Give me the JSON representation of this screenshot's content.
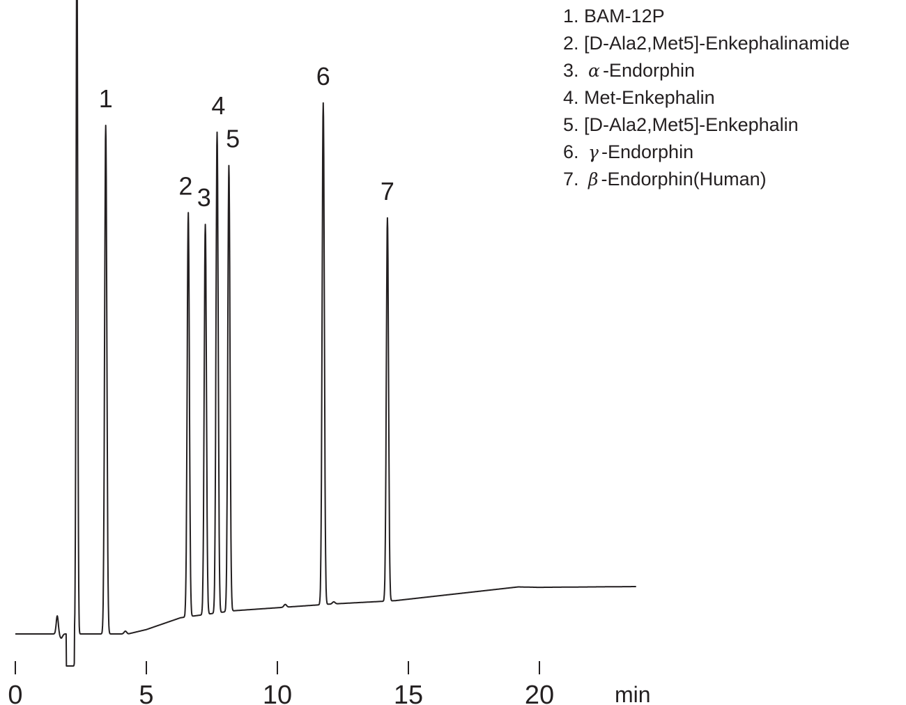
{
  "chart_data": {
    "type": "line",
    "title": "",
    "xlabel": "min",
    "ylabel": "",
    "xlim": [
      0,
      24
    ],
    "x_ticks": [
      0,
      5,
      10,
      15,
      20
    ],
    "x_tick_labels": [
      "0",
      "5",
      "10",
      "15",
      "20"
    ],
    "y_axis_shown": false,
    "grid": false,
    "legend_position": "top-right",
    "line_color": "#231f20",
    "peaks": [
      {
        "label": "1",
        "rt": 3.45,
        "height": 0.73
      },
      {
        "label": "2",
        "rt": 6.6,
        "height": 0.58
      },
      {
        "label": "3",
        "rt": 7.25,
        "height": 0.56
      },
      {
        "label": "4",
        "rt": 7.7,
        "height": 0.69
      },
      {
        "label": "5",
        "rt": 8.15,
        "height": 0.64
      },
      {
        "label": "6",
        "rt": 11.75,
        "height": 0.72
      },
      {
        "label": "7",
        "rt": 14.2,
        "height": 0.55
      }
    ],
    "peak_labels": [
      {
        "text": "1",
        "rt": 3.45
      },
      {
        "text": "2",
        "rt": 6.5
      },
      {
        "text": "3",
        "rt": 7.2
      },
      {
        "text": "4",
        "rt": 7.75
      },
      {
        "text": "5",
        "rt": 8.3
      },
      {
        "text": "6",
        "rt": 11.75
      },
      {
        "text": "7",
        "rt": 14.2
      }
    ]
  },
  "legend": [
    {
      "prefix": "1.",
      "greek": "",
      "name": "BAM-12P"
    },
    {
      "prefix": "2.",
      "greek": "",
      "name": "[D-Ala2,Met5]-Enkephalinamide"
    },
    {
      "prefix": "3.",
      "greek": "α",
      "name": "-Endorphin"
    },
    {
      "prefix": "4.",
      "greek": "",
      "name": "Met-Enkephalin"
    },
    {
      "prefix": "5.",
      "greek": "",
      "name": "[D-Ala2,Met5]-Enkephalin"
    },
    {
      "prefix": "6.",
      "greek": "γ",
      "name": "-Endorphin"
    },
    {
      "prefix": "7.",
      "greek": "β",
      "name": "-Endorphin(Human)"
    }
  ]
}
